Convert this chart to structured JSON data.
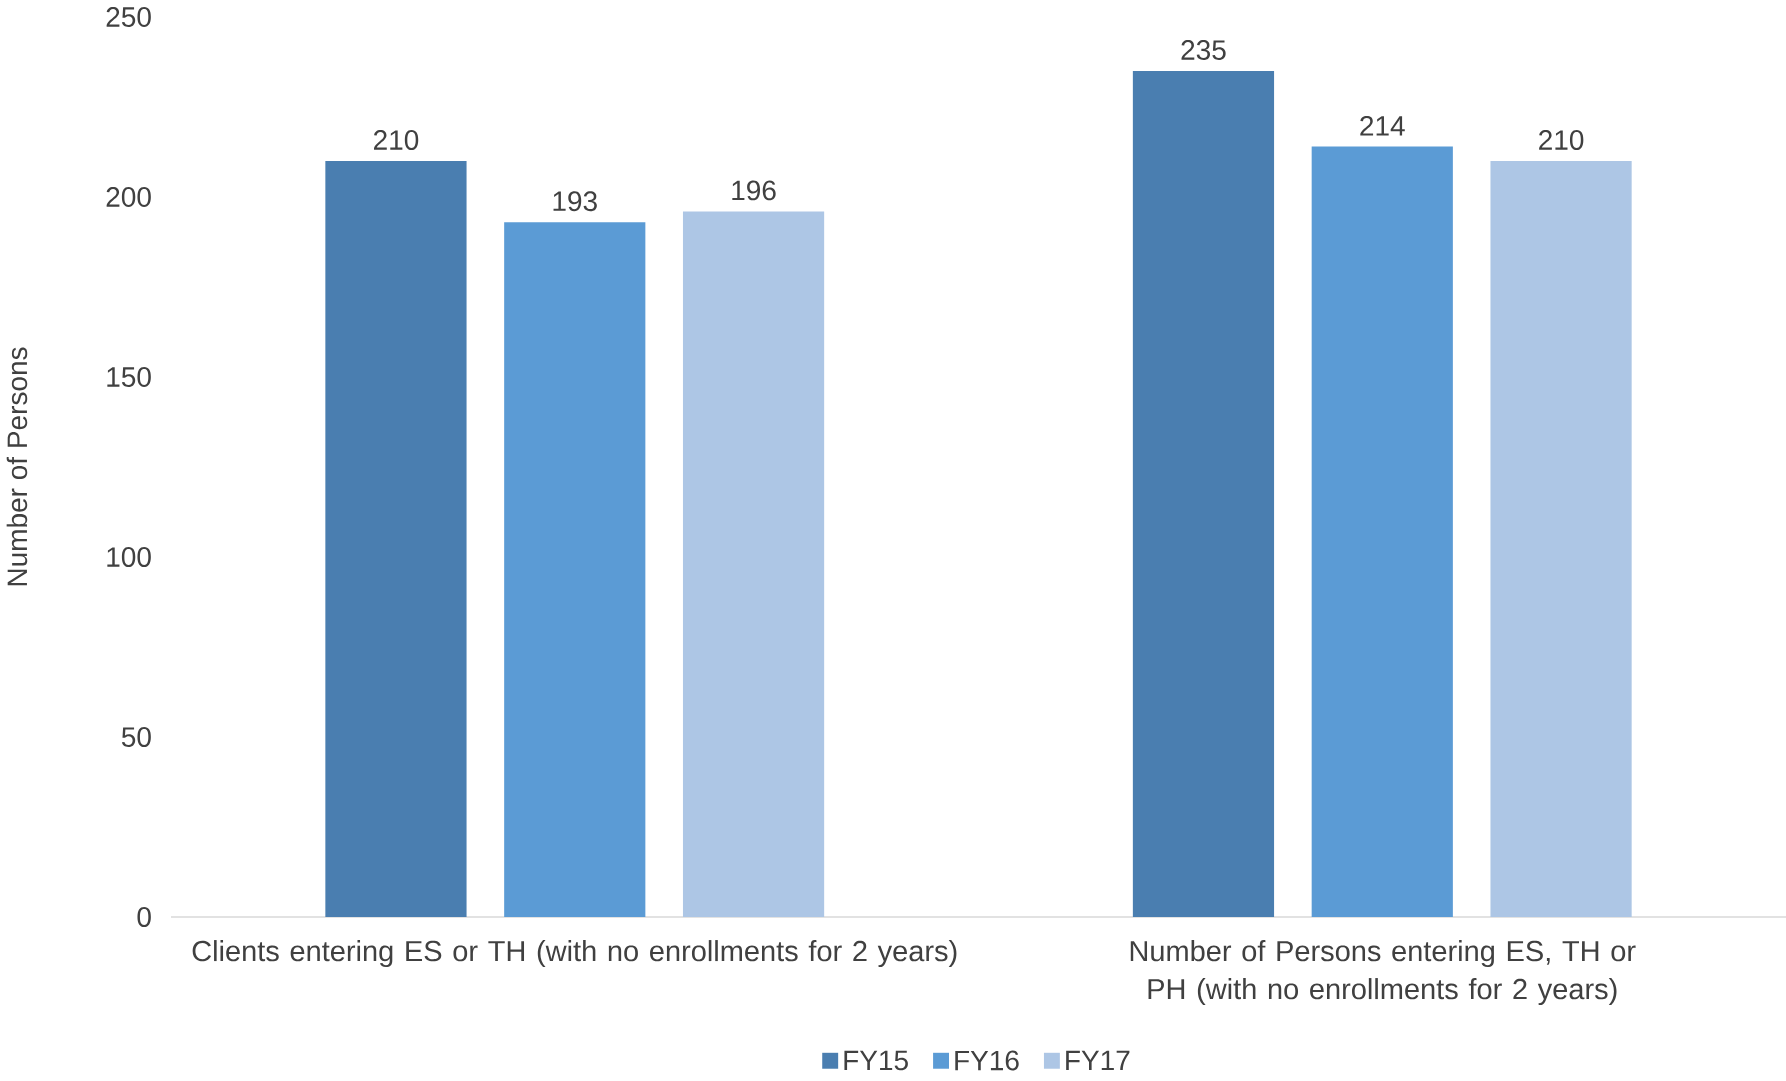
{
  "chart_data": {
    "type": "bar",
    "ylabel": "Number of Persons",
    "categories": [
      "Clients entering ES or TH (with no enrollments for 2 years)",
      "Number of Persons entering ES, TH or PH (with no enrollments for 2 years)"
    ],
    "series": [
      {
        "name": "FY15",
        "color": "#4a7eb0",
        "values": [
          210,
          235
        ]
      },
      {
        "name": "FY16",
        "color": "#5b9bd5",
        "values": [
          193,
          214
        ]
      },
      {
        "name": "FY17",
        "color": "#adc6e5",
        "values": [
          196,
          210
        ]
      }
    ],
    "ylim": [
      0,
      250
    ],
    "yticks": [
      0,
      50,
      100,
      150,
      200,
      250
    ],
    "data_labels": true,
    "legend": "bottom"
  }
}
